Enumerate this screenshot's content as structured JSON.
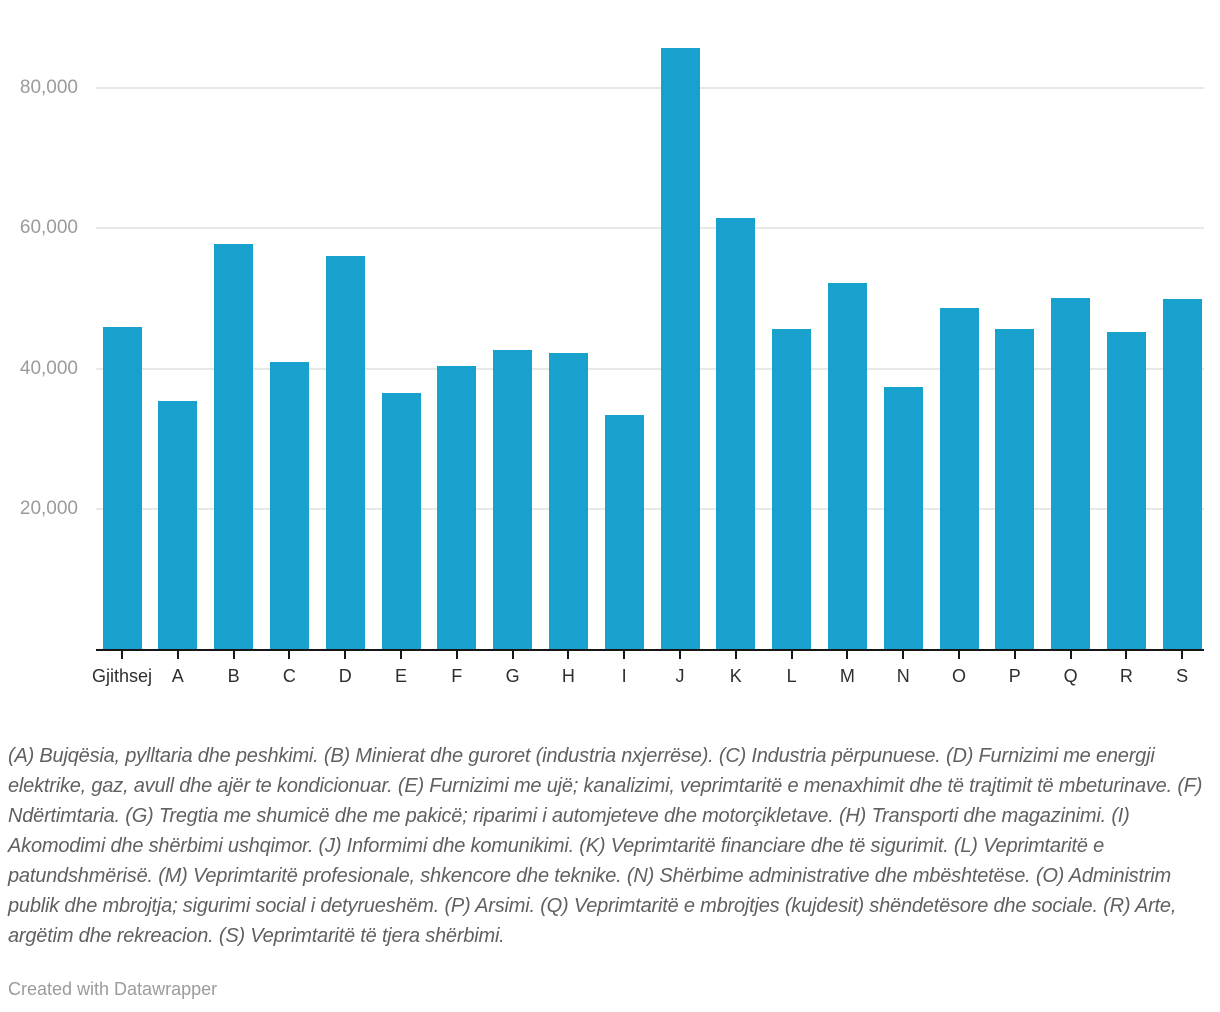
{
  "chart_data": {
    "type": "bar",
    "categories": [
      "Gjithsej",
      "A",
      "B",
      "C",
      "D",
      "E",
      "F",
      "G",
      "H",
      "I",
      "J",
      "K",
      "L",
      "M",
      "N",
      "O",
      "P",
      "Q",
      "R",
      "S"
    ],
    "values": [
      45900,
      35400,
      57800,
      40900,
      56100,
      36500,
      40300,
      42600,
      42200,
      33400,
      85700,
      61500,
      45600,
      52200,
      37300,
      48600,
      45700,
      50100,
      45200,
      49900
    ],
    "y_ticks": [
      {
        "value": 20000,
        "label": "20,000"
      },
      {
        "value": 40000,
        "label": "40,000"
      },
      {
        "value": 60000,
        "label": "60,000"
      },
      {
        "value": 80000,
        "label": "80,000"
      }
    ],
    "ylim": [
      0,
      91400
    ],
    "xlabel": "",
    "ylabel": "",
    "grid": "horizontal-only",
    "legend": "none",
    "bar_color": "#18a1cd"
  },
  "footnote": "(A) Bujqësia, pylltaria dhe peshkimi. (B) Minierat dhe guroret (industria nxjerrëse). (C) Industria përpunuese. (D) Furnizimi me energji elektrike, gaz, avull dhe ajër te kondicionuar. (E) Furnizimi me ujë; kanalizimi, veprimtaritë e menaxhimit dhe të trajtimit të mbeturinave. (F) Ndërtimtaria. (G) Tregtia me shumicë dhe me pakicë; riparimi i automjeteve dhe motorçikletave. (H) Transporti dhe magazinimi. (I) Akomodimi dhe shërbimi ushqimor. (J) Informimi dhe komunikimi. (K) Veprimtaritë financiare dhe të sigurimit. (L) Veprimtaritë e patundshmërisë. (M) Veprimtaritë profesionale, shkencore dhe teknike. (N) Shërbime administrative dhe mbështetëse. (O) Administrim publik dhe mbrojtja; sigurimi social i detyrueshëm. (P) Arsimi. (Q) Veprimtaritë e mbrojtjes (kujdesit) shëndetësore dhe sociale. (R) Arte, argëtim dhe rekreacion. (S) Veprimtaritë të tjera shërbimi.",
  "credit": "Created with Datawrapper",
  "colors": {
    "bar": "#18a1cd",
    "gridline": "#e8e8e8",
    "axis": "#161616",
    "y_label": "#9b9b9b",
    "x_label": "#2e2e2e",
    "footnote": "#606060",
    "credit": "#9b9b9b",
    "background": "#ffffff"
  }
}
